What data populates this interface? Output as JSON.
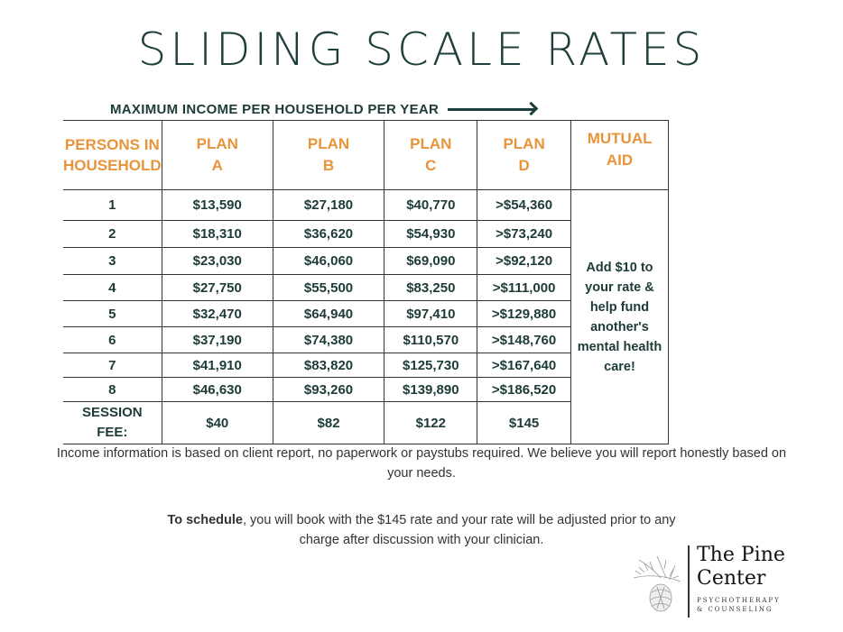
{
  "title": "SLIDING SCALE RATES",
  "subtitle": "MAXIMUM INCOME PER HOUSEHOLD PER YEAR",
  "headers": {
    "persons": "PERSONS IN HOUSEHOLD",
    "plan_a": "PLAN A",
    "plan_b": "PLAN B",
    "plan_c": "PLAN C",
    "plan_d": "PLAN D",
    "mutual": "MUTUAL AID"
  },
  "rows": [
    {
      "n": "1",
      "a": "$13,590",
      "b": "$27,180",
      "c": "$40,770",
      "d": ">$54,360"
    },
    {
      "n": "2",
      "a": "$18,310",
      "b": "$36,620",
      "c": "$54,930",
      "d": ">$73,240"
    },
    {
      "n": "3",
      "a": "$23,030",
      "b": "$46,060",
      "c": "$69,090",
      "d": ">$92,120"
    },
    {
      "n": "4",
      "a": "$27,750",
      "b": "$55,500",
      "c": "$83,250",
      "d": ">$111,000"
    },
    {
      "n": "5",
      "a": "$32,470",
      "b": "$64,940",
      "c": "$97,410",
      "d": ">$129,880"
    },
    {
      "n": "6",
      "a": "$37,190",
      "b": "$74,380",
      "c": "$110,570",
      "d": ">$148,760"
    },
    {
      "n": "7",
      "a": "$41,910",
      "b": "$83,820",
      "c": "$125,730",
      "d": ">$167,640"
    },
    {
      "n": "8",
      "a": "$46,630",
      "b": "$93,260",
      "c": "$139,890",
      "d": ">$186,520"
    }
  ],
  "mutual_aid_text": "Add $10 to your rate & help fund another's mental health care!",
  "session_fee": {
    "label": "SESSION FEE:",
    "a": "$40",
    "b": "$82",
    "c": "$122",
    "d": "$145"
  },
  "note1": "Income information is based on client report, no paperwork  or paystubs required. We believe you will report honestly based on your needs.",
  "note2_bold": "To schedule",
  "note2_rest": ", you will book with the $145 rate and your rate will be adjusted prior to any charge after discussion with your clinician.",
  "logo": {
    "name_line1": "The Pine",
    "name_line2": "Center",
    "tagline": "PSYCHOTHERAPY & COUNSELING"
  },
  "colors": {
    "teal": "#1d3f3b",
    "orange": "#e8943a"
  }
}
